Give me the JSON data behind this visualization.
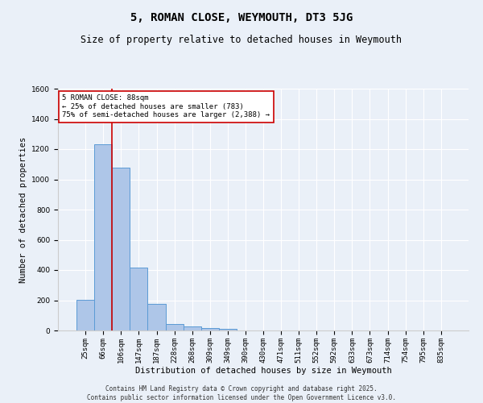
{
  "title": "5, ROMAN CLOSE, WEYMOUTH, DT3 5JG",
  "subtitle": "Size of property relative to detached houses in Weymouth",
  "xlabel": "Distribution of detached houses by size in Weymouth",
  "ylabel": "Number of detached properties",
  "categories": [
    "25sqm",
    "66sqm",
    "106sqm",
    "147sqm",
    "187sqm",
    "228sqm",
    "268sqm",
    "309sqm",
    "349sqm",
    "390sqm",
    "430sqm",
    "471sqm",
    "511sqm",
    "552sqm",
    "592sqm",
    "633sqm",
    "673sqm",
    "714sqm",
    "754sqm",
    "795sqm",
    "835sqm"
  ],
  "values": [
    205,
    1232,
    1078,
    415,
    178,
    45,
    27,
    18,
    10,
    0,
    0,
    0,
    0,
    0,
    0,
    0,
    0,
    0,
    0,
    0,
    0
  ],
  "bar_color": "#aec6e8",
  "bar_edge_color": "#5b9bd5",
  "vline_x": 1.5,
  "vline_color": "#cc0000",
  "ylim": [
    0,
    1600
  ],
  "yticks": [
    0,
    200,
    400,
    600,
    800,
    1000,
    1200,
    1400,
    1600
  ],
  "annotation_text": "5 ROMAN CLOSE: 88sqm\n← 25% of detached houses are smaller (783)\n75% of semi-detached houses are larger (2,388) →",
  "annotation_box_color": "#ffffff",
  "annotation_box_edge": "#cc0000",
  "footer": "Contains HM Land Registry data © Crown copyright and database right 2025.\nContains public sector information licensed under the Open Government Licence v3.0.",
  "bg_color": "#eaf0f8",
  "plot_bg_color": "#eaf0f8",
  "grid_color": "#ffffff",
  "title_fontsize": 10,
  "subtitle_fontsize": 8.5,
  "xlabel_fontsize": 7.5,
  "ylabel_fontsize": 7.5,
  "tick_fontsize": 6.5,
  "ann_fontsize": 6.5,
  "footer_fontsize": 5.5
}
